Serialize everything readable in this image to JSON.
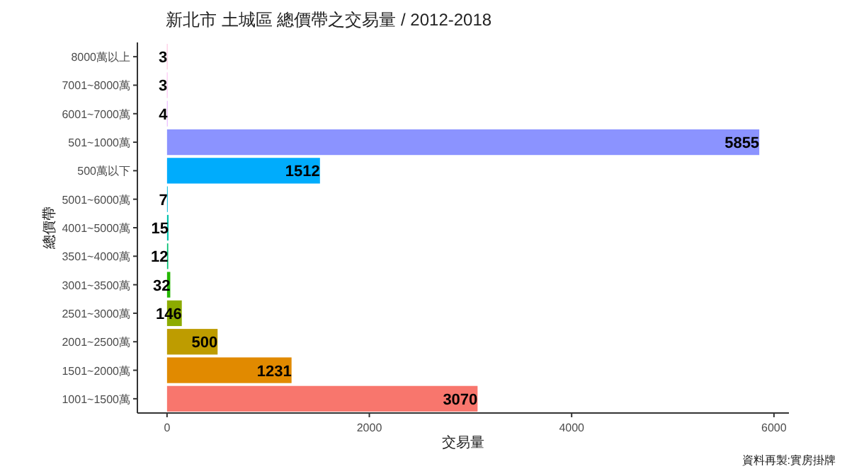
{
  "chart_data": {
    "type": "bar",
    "orientation": "horizontal",
    "title": "新北市 土城區 總價帶之交易量 / 2012-2018",
    "xlabel": "交易量",
    "ylabel": "總價帶",
    "categories": [
      "8000萬以上",
      "7001~8000萬",
      "6001~7000萬",
      "501~1000萬",
      "500萬以下",
      "5001~6000萬",
      "4001~5000萬",
      "3501~4000萬",
      "3001~3500萬",
      "2501~3000萬",
      "2001~2500萬",
      "1501~2000萬",
      "1001~1500萬"
    ],
    "values": [
      3,
      3,
      4,
      5855,
      1512,
      7,
      15,
      12,
      32,
      146,
      500,
      1231,
      3070
    ],
    "colors": [
      "#FF65AC",
      "#F962DD",
      "#D575FE",
      "#8B93FF",
      "#00ACFC",
      "#00BBDA",
      "#00C1AB",
      "#00BE70",
      "#24B700",
      "#8CAB00",
      "#BE9C00",
      "#E18A00",
      "#F8766D"
    ],
    "xlim": [
      -293,
      6148
    ],
    "xticks": [
      0,
      2000,
      4000,
      6000
    ],
    "data_labels": true,
    "grid": false,
    "annotations": [
      "資料再製:實房掛牌"
    ]
  }
}
